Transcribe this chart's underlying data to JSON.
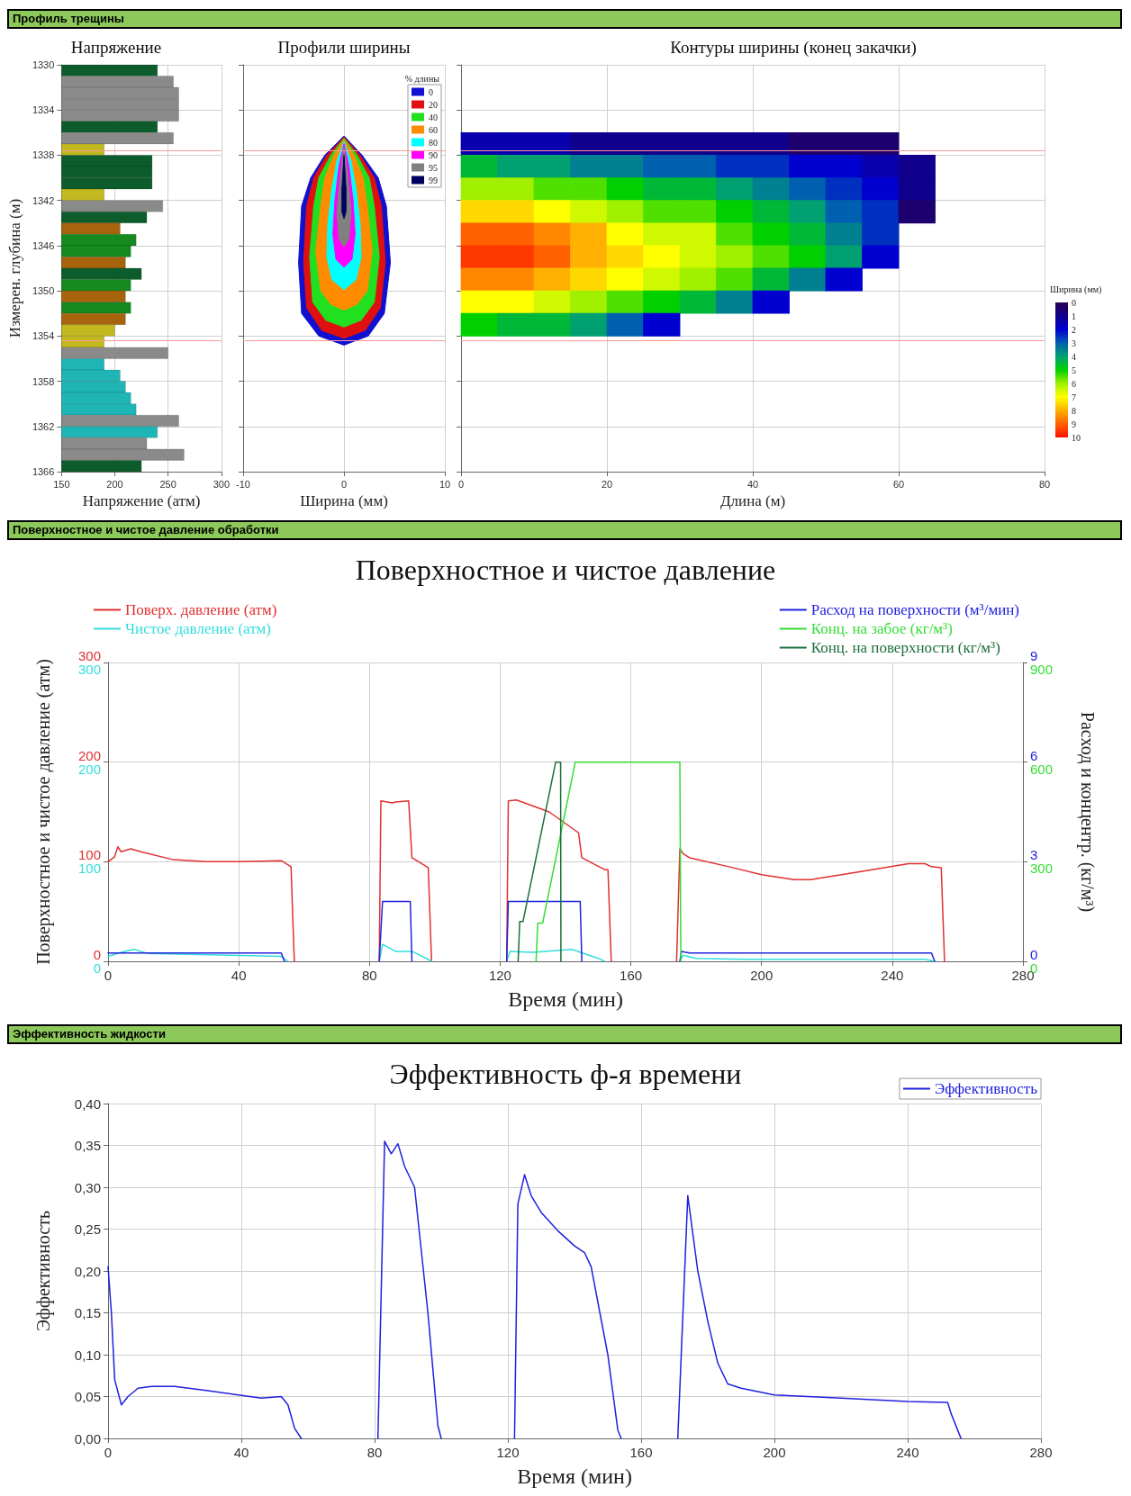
{
  "chart_data": [
    {
      "type": "bar",
      "orientation": "horizontal",
      "title": "Напряжение",
      "xlabel": "Напряжение (атм)",
      "ylabel": "Измерен. глубина (м)",
      "annotations": [
        "Профиль трещины"
      ],
      "x": [
        1330.5,
        1331.5,
        1332.5,
        1333.5,
        1334.5,
        1335.5,
        1336.5,
        1337.5,
        1338.5,
        1339.5,
        1340.5,
        1341.5,
        1342.5,
        1343.5,
        1344.5,
        1345.5,
        1346.5,
        1347.5,
        1348.5,
        1349.5,
        1350.5,
        1351.5,
        1352.5,
        1353.5,
        1354.5,
        1355.5,
        1356.5,
        1357.5,
        1358.5,
        1359.5,
        1360.5,
        1361.5,
        1362.5,
        1363.5,
        1364.5,
        1365.5
      ],
      "values": [
        240,
        255,
        260,
        260,
        260,
        240,
        255,
        190,
        235,
        235,
        235,
        190,
        245,
        230,
        205,
        220,
        215,
        210,
        225,
        215,
        210,
        215,
        210,
        200,
        190,
        250,
        190,
        205,
        210,
        215,
        220,
        260,
        240,
        230,
        265,
        225
      ],
      "colors": [
        "#0d5c2c",
        "#8a8a8a",
        "#8a8a8a",
        "#8a8a8a",
        "#8a8a8a",
        "#0d5c2c",
        "#8a8a8a",
        "#c2b820",
        "#0d5c2c",
        "#0d5c2c",
        "#0d5c2c",
        "#c2b820",
        "#8a8a8a",
        "#0d5c2c",
        "#a8640c",
        "#168a1e",
        "#168a1e",
        "#a8640c",
        "#0d5c2c",
        "#168a1e",
        "#a8640c",
        "#168a1e",
        "#a8640c",
        "#c2b820",
        "#c2b820",
        "#8a8a8a",
        "#1fb5b5",
        "#1fb5b5",
        "#1fb5b5",
        "#1fb5b5",
        "#1fb5b5",
        "#8a8a8a",
        "#1fb5b5",
        "#8a8a8a",
        "#8a8a8a",
        "#0d5c2c"
      ],
      "xlim": [
        150,
        300
      ],
      "xticks": [
        150,
        200,
        250,
        300
      ],
      "ylim": [
        1366,
        1330
      ],
      "yticks": [
        1330,
        1334,
        1338,
        1342,
        1346,
        1350,
        1354,
        1358,
        1362,
        1366
      ],
      "grid": true,
      "ref_lines": [
        {
          "axis": "y",
          "value": 1337.6,
          "color": "#ff9999"
        },
        {
          "axis": "y",
          "value": 1354.4,
          "color": "#ff9999"
        }
      ]
    },
    {
      "type": "area",
      "title": "Профили ширины",
      "xlabel": "Ширина (мм)",
      "legend_title": "% длины",
      "legend": "top right",
      "grid": true,
      "tick_labels": "x",
      "xlim": [
        -10,
        10
      ],
      "xticks": [
        -10,
        0,
        10
      ],
      "ylim": [
        1366,
        1330
      ],
      "yticks": [
        1330,
        1334,
        1338,
        1342,
        1346,
        1350,
        1354,
        1358,
        1362,
        1366
      ],
      "ref_lines": [
        {
          "axis": "y",
          "value": 1337.6,
          "color": "#ff9999"
        },
        {
          "axis": "y",
          "value": 1354.4,
          "color": "#ff9999"
        }
      ],
      "series": [
        {
          "name": "0",
          "color": "#1010d0",
          "x": [
            0,
            1.8,
            3.4,
            4.2,
            4.6,
            4.0,
            2.4,
            0,
            -2.5,
            -4.2,
            -4.5,
            -4.2,
            -3.3,
            -1.9,
            0
          ],
          "values": [
            1336.3,
            1338,
            1340,
            1342.5,
            1347.5,
            1352,
            1354,
            1354.8,
            1354,
            1352,
            1347.5,
            1342.5,
            1340,
            1338,
            1336.3
          ]
        },
        {
          "name": "20",
          "color": "#e01010",
          "x": [
            0,
            1.6,
            3.0,
            3.7,
            4.1,
            3.6,
            2.1,
            0,
            -2.2,
            -3.7,
            -4.0,
            -3.7,
            -3.0,
            -1.7,
            0
          ],
          "values": [
            1336.4,
            1338,
            1340,
            1342.5,
            1347.5,
            1351.5,
            1353.5,
            1354.2,
            1353.5,
            1351.5,
            1347.5,
            1342.5,
            1340,
            1338,
            1336.4
          ]
        },
        {
          "name": "40",
          "color": "#20e020",
          "x": [
            0,
            1.3,
            2.5,
            3.0,
            3.5,
            3.0,
            1.7,
            0,
            -1.8,
            -3.1,
            -3.4,
            -3.0,
            -2.5,
            -1.3,
            0
          ],
          "values": [
            1336.5,
            1338,
            1340,
            1342.5,
            1347,
            1351,
            1352.6,
            1353.2,
            1352.6,
            1351,
            1347,
            1342.5,
            1340,
            1338,
            1336.5
          ]
        },
        {
          "name": "60",
          "color": "#ff8c00",
          "x": [
            0,
            1.0,
            1.9,
            2.3,
            2.8,
            2.3,
            1.3,
            0,
            -1.3,
            -2.3,
            -2.8,
            -2.3,
            -1.9,
            -1.0,
            0
          ],
          "values": [
            1336.6,
            1338,
            1340,
            1342.5,
            1346.5,
            1350,
            1351.2,
            1351.7,
            1351.2,
            1350,
            1346.5,
            1342.5,
            1340,
            1338,
            1336.6
          ]
        },
        {
          "name": "80",
          "color": "#00ffff",
          "x": [
            0,
            0.7,
            1.2,
            1.6,
            1.7,
            1.2,
            0,
            -1.2,
            -1.7,
            -1.6,
            -1.2,
            -0.7,
            0
          ],
          "values": [
            1336.8,
            1338.5,
            1341,
            1344,
            1347,
            1349,
            1349.9,
            1349,
            1347,
            1344,
            1341,
            1338.5,
            1336.8
          ]
        },
        {
          "name": "90",
          "color": "#ff00ff",
          "x": [
            0,
            0.5,
            0.9,
            1.1,
            0.8,
            0,
            -0.8,
            -1.1,
            -0.9,
            -0.5,
            0
          ],
          "values": [
            1337,
            1339,
            1342,
            1345,
            1347.2,
            1347.9,
            1347.2,
            1345,
            1342,
            1339,
            1337
          ]
        },
        {
          "name": "95",
          "color": "#808080",
          "x": [
            0,
            0.4,
            0.7,
            0.5,
            0,
            -0.5,
            -0.7,
            -0.4,
            0
          ],
          "values": [
            1337.3,
            1340,
            1343,
            1345.4,
            1346.1,
            1345.4,
            1343,
            1340,
            1337.3
          ]
        },
        {
          "name": "99",
          "color": "#000060",
          "x": [
            0,
            0.2,
            0.2,
            0,
            -0.2,
            -0.2,
            0
          ],
          "values": [
            1338,
            1341,
            1343,
            1343.6,
            1343,
            1341,
            1338
          ]
        }
      ]
    },
    {
      "type": "scatter",
      "marker": "square",
      "title": "Контуры ширины (конец закачки)",
      "xlabel": "Длина (м)",
      "clabel": "Ширина (мм)",
      "clim": [
        0,
        10
      ],
      "cticks": [
        0,
        1,
        2,
        3,
        4,
        5,
        6,
        7,
        8,
        9,
        10
      ],
      "grid": true,
      "tick_labels": "x",
      "xlim": [
        0,
        80
      ],
      "xticks": [
        0,
        20,
        40,
        60,
        80
      ],
      "ylim": [
        1366,
        1330
      ],
      "yticks": [
        1330,
        1334,
        1338,
        1342,
        1346,
        1350,
        1354,
        1358,
        1362,
        1366
      ],
      "ref_lines": [
        {
          "axis": "y",
          "value": 1337.6,
          "color": "#ff9999"
        },
        {
          "axis": "y",
          "value": 1354.4,
          "color": "#ff9999"
        }
      ],
      "x": [
        2.5,
        7.5,
        12.5,
        17.5,
        22.5,
        27.5,
        32.5,
        37.5,
        42.5,
        47.5,
        52.5,
        57.5,
        2.5,
        7.5,
        12.5,
        17.5,
        22.5,
        27.5,
        32.5,
        37.5,
        42.5,
        47.5,
        52.5,
        57.5,
        62.5,
        2.5,
        7.5,
        12.5,
        17.5,
        22.5,
        27.5,
        32.5,
        37.5,
        42.5,
        47.5,
        52.5,
        57.5,
        62.5,
        2.5,
        7.5,
        12.5,
        17.5,
        22.5,
        27.5,
        32.5,
        37.5,
        42.5,
        47.5,
        52.5,
        57.5,
        62.5,
        2.5,
        7.5,
        12.5,
        17.5,
        22.5,
        27.5,
        32.5,
        37.5,
        42.5,
        47.5,
        52.5,
        57.5,
        2.5,
        7.5,
        12.5,
        17.5,
        22.5,
        27.5,
        32.5,
        37.5,
        42.5,
        47.5,
        52.5,
        57.5,
        2.5,
        7.5,
        12.5,
        17.5,
        22.5,
        27.5,
        32.5,
        37.5,
        42.5,
        47.5,
        52.5,
        2.5,
        7.5,
        12.5,
        17.5,
        22.5,
        27.5,
        32.5,
        37.5,
        42.5,
        2.5,
        7.5,
        12.5,
        17.5,
        22.5,
        27.5
      ],
      "values": [
        1337,
        1337,
        1337,
        1337,
        1337,
        1337,
        1337,
        1337,
        1337,
        1337,
        1337,
        1337,
        1339,
        1339,
        1339,
        1339,
        1339,
        1339,
        1339,
        1339,
        1339,
        1339,
        1339,
        1339,
        1339,
        1341,
        1341,
        1341,
        1341,
        1341,
        1341,
        1341,
        1341,
        1341,
        1341,
        1341,
        1341,
        1341,
        1343,
        1343,
        1343,
        1343,
        1343,
        1343,
        1343,
        1343,
        1343,
        1343,
        1343,
        1343,
        1343,
        1345,
        1345,
        1345,
        1345,
        1345,
        1345,
        1345,
        1345,
        1345,
        1345,
        1345,
        1345,
        1347,
        1347,
        1347,
        1347,
        1347,
        1347,
        1347,
        1347,
        1347,
        1347,
        1347,
        1347,
        1349,
        1349,
        1349,
        1349,
        1349,
        1349,
        1349,
        1349,
        1349,
        1349,
        1349,
        1351,
        1351,
        1351,
        1351,
        1351,
        1351,
        1351,
        1351,
        1351,
        1353,
        1353,
        1353,
        1353,
        1353,
        1353
      ],
      "cvalues": [
        1.5,
        1.5,
        1.5,
        1,
        1,
        1,
        1,
        1,
        1,
        0.5,
        0.5,
        0.5,
        4.5,
        4,
        4,
        3.5,
        3.5,
        3,
        3,
        2.5,
        2.5,
        2,
        2,
        1.5,
        1,
        6,
        6,
        5.5,
        5.5,
        5,
        4.5,
        4.5,
        4,
        3.5,
        3,
        2.5,
        2,
        1,
        7.5,
        7.5,
        7,
        6.5,
        6,
        5.5,
        5.5,
        5,
        4.5,
        4,
        3,
        2.5,
        0.5,
        9,
        9,
        8.5,
        8,
        7,
        6.5,
        6.5,
        5.5,
        5,
        4.5,
        3.5,
        2.5,
        9.5,
        9.5,
        9,
        8,
        7.5,
        7,
        6.5,
        6,
        5.5,
        5,
        4,
        2,
        8.5,
        8.5,
        8,
        7.5,
        7,
        6.5,
        6,
        5.5,
        4.5,
        3.5,
        2,
        7,
        7,
        6.5,
        6,
        5.5,
        5,
        4.5,
        3.5,
        2,
        5,
        4.5,
        4.5,
        4,
        3,
        2
      ]
    },
    {
      "type": "line",
      "title": "Поверхностное и чистое давление",
      "xlabel": "Время (мин)",
      "y2label": "Поверхностное и чистое давление (атм)",
      "annotations": [
        "Поверхностное и чистое давление обработки"
      ],
      "legend": "top left",
      "grid": true,
      "xlim": [
        0,
        280
      ],
      "xticks": [
        0,
        40,
        80,
        120,
        160,
        200,
        240,
        280
      ],
      "ylim": [
        0,
        300
      ],
      "yticks": [
        0,
        100,
        200,
        300
      ],
      "y2lim": [
        0,
        300
      ],
      "y2ticks": [
        0,
        100,
        200,
        300
      ],
      "series": [
        {
          "name": "Поверх. давление (атм)",
          "color": "#e03030",
          "x": [
            0,
            2,
            3,
            4,
            7,
            10,
            20,
            30,
            40,
            53,
            55,
            56,
            57,
            70,
            83,
            83.5,
            87,
            88,
            92,
            93,
            98,
            99,
            110,
            122,
            122.5,
            125,
            135,
            144,
            145,
            152,
            153,
            154,
            165,
            174,
            175,
            176,
            178,
            190,
            200,
            210,
            215,
            230,
            245,
            250,
            252,
            255,
            256
          ],
          "values": [
            100,
            105,
            115,
            110,
            113,
            110,
            102,
            100,
            100,
            101,
            97,
            95,
            0,
            null,
            0,
            161,
            159,
            160,
            161,
            104,
            94,
            0,
            null,
            0,
            161,
            162,
            150,
            129,
            104,
            92,
            92,
            0,
            null,
            0,
            113,
            108,
            104,
            95,
            87,
            82,
            82,
            90,
            98,
            98,
            95,
            94,
            0
          ]
        },
        {
          "name": "Чистое давление (атм)",
          "color": "#33dddd",
          "axis": "y2",
          "x": [
            0,
            5,
            8,
            12,
            53,
            55,
            70,
            83,
            84,
            88,
            93,
            98,
            99,
            110,
            122,
            123,
            130,
            142,
            150,
            152,
            165,
            175,
            176,
            180,
            195,
            250,
            253
          ],
          "values": [
            5,
            10,
            12,
            8,
            5,
            0,
            null,
            0,
            17,
            10,
            10,
            2,
            0,
            null,
            0,
            10,
            9,
            12,
            3,
            0,
            null,
            0,
            6,
            3,
            2,
            2,
            0
          ]
        }
      ]
    },
    {
      "type": "line",
      "y2label": "Расход и концентр. (кг/м³)",
      "legend": "top right",
      "tick_labels": "y",
      "xlim": [
        0,
        280
      ],
      "ylim": [
        0,
        9
      ],
      "yticks": [
        0,
        3,
        6,
        9
      ],
      "y2lim": [
        0,
        900
      ],
      "y2ticks": [
        0,
        300,
        600,
        900
      ],
      "series": [
        {
          "name": "Расход на поверхности (м³/мин)",
          "color": "#2222dd",
          "x": [
            0,
            53,
            54,
            70,
            83,
            84,
            92.5,
            93,
            110,
            122,
            122.5,
            144.5,
            145,
            165,
            175,
            175.5,
            178,
            252,
            253
          ],
          "values": [
            0.25,
            0.25,
            0,
            null,
            0,
            1.8,
            1.8,
            0,
            null,
            0,
            1.8,
            1.8,
            0,
            null,
            0,
            0.3,
            0.25,
            0.25,
            0
          ]
        },
        {
          "name": "Конц. на забое (кг/м³)",
          "color": "#33dd33",
          "axis": "y2",
          "x": [
            131,
            131.5,
            133,
            143,
            175,
            175.3
          ],
          "values": [
            0,
            115,
            115,
            600,
            600,
            0
          ]
        },
        {
          "name": "Конц. на поверхности (кг/м³)",
          "color": "#1a6e3a",
          "axis": "y2",
          "x": [
            125.5,
            126,
            127,
            137,
            138.5,
            138.6
          ],
          "values": [
            0,
            120,
            120,
            600,
            600,
            0
          ]
        }
      ]
    },
    {
      "type": "line",
      "title": "Эффективность ф-я времени",
      "xlabel": "Время (мин)",
      "ylabel": "Эффективность",
      "annotations": [
        "Эффективность жидкости"
      ],
      "legend": "top right",
      "grid": true,
      "xlim": [
        0,
        280
      ],
      "xticks": [
        0,
        40,
        80,
        120,
        160,
        200,
        240,
        280
      ],
      "ylim": [
        0,
        0.4
      ],
      "yticks": [
        {
          "value": 0,
          "label": "0,00"
        },
        {
          "value": 0.05,
          "label": "0,05"
        },
        {
          "value": 0.1,
          "label": "0,10"
        },
        {
          "value": 0.15,
          "label": "0,15"
        },
        {
          "value": 0.2,
          "label": "0,20"
        },
        {
          "value": 0.25,
          "label": "0,25"
        },
        {
          "value": 0.3,
          "label": "0,30"
        },
        {
          "value": 0.35,
          "label": "0,35"
        },
        {
          "value": 0.4,
          "label": "0,40"
        }
      ],
      "series": [
        {
          "name": "Эффективность",
          "color": "#2020e0",
          "x": [
            0,
            1,
            2,
            4,
            6,
            9,
            13,
            20,
            30,
            46,
            52,
            54,
            56,
            58,
            70,
            81,
            83,
            85,
            87,
            89,
            92,
            96,
            99,
            100,
            110,
            122,
            123,
            125,
            127,
            130,
            135,
            140,
            143,
            145,
            150,
            153,
            154,
            165,
            171,
            174,
            177,
            180,
            183,
            186,
            190,
            200,
            220,
            240,
            252,
            253,
            256
          ],
          "values": [
            0.205,
            0.15,
            0.07,
            0.04,
            0.05,
            0.06,
            0.062,
            0.062,
            0.057,
            0.048,
            0.05,
            0.04,
            0.012,
            0,
            null,
            0,
            0.355,
            0.34,
            0.352,
            0.325,
            0.3,
            0.15,
            0.015,
            0,
            null,
            0,
            0.28,
            0.315,
            0.29,
            0.27,
            0.248,
            0.23,
            0.222,
            0.205,
            0.1,
            0.01,
            0,
            null,
            0,
            0.29,
            0.2,
            0.14,
            0.09,
            0.065,
            0.06,
            0.052,
            0.048,
            0.044,
            0.043,
            0.03,
            0
          ]
        }
      ]
    }
  ]
}
